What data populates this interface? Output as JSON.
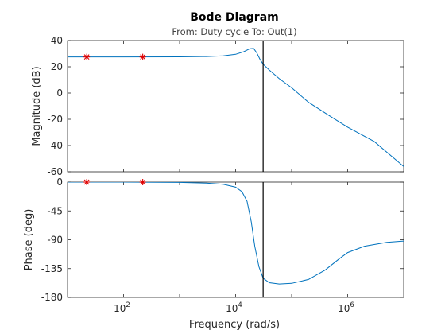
{
  "chart_data": {
    "type": "line",
    "title": "Bode Diagram",
    "subtitle": "From: Duty cycle  To: Out(1)",
    "xlabel": "Frequency  (rad/s)",
    "xscale": "log",
    "xlim": [
      10,
      10000000
    ],
    "x_ticks": [
      {
        "base": "10",
        "exp": "2",
        "value": 100
      },
      {
        "base": "10",
        "exp": "4",
        "value": 10000
      },
      {
        "base": "10",
        "exp": "6",
        "value": 1000000
      }
    ],
    "vertical_line_x": 31000,
    "series_color": "#0072bd",
    "marker_color": "#e00000",
    "panels": [
      {
        "id": "magnitude",
        "ylabel": "Magnitude (dB)",
        "ylim": [
          -60,
          40
        ],
        "y_ticks": [
          "40",
          "20",
          "0",
          "-20",
          "-40",
          "-60"
        ],
        "y_tick_values": [
          40,
          20,
          0,
          -20,
          -40,
          -60
        ],
        "curve": {
          "x": [
            10,
            100,
            1000,
            3000,
            6000,
            10000,
            14000,
            18000,
            21000,
            24000,
            27000,
            31000,
            40000,
            60000,
            100000,
            200000,
            500000,
            1000000,
            3000000,
            10000000
          ],
          "y": [
            27.5,
            27.5,
            27.6,
            27.8,
            28.3,
            29.5,
            31.5,
            33.8,
            34.0,
            30.5,
            26.0,
            22.0,
            17.5,
            11.0,
            4.0,
            -7.0,
            -18.0,
            -26.0,
            -37.0,
            -56.0
          ]
        },
        "markers": {
          "x": [
            22,
            220
          ],
          "y": [
            27.5,
            27.5
          ]
        }
      },
      {
        "id": "phase",
        "ylabel": "Phase (deg)",
        "ylim": [
          -180,
          0
        ],
        "y_ticks": [
          "0",
          "-45",
          "-90",
          "-135",
          "-180"
        ],
        "y_tick_values": [
          0,
          -45,
          -90,
          -135,
          -180
        ],
        "curve": {
          "x": [
            10,
            100,
            1000,
            3000,
            6000,
            10000,
            13000,
            16000,
            19000,
            22000,
            26000,
            31000,
            40000,
            60000,
            100000,
            200000,
            400000,
            700000,
            1000000,
            2000000,
            5000000,
            10000000
          ],
          "y": [
            0,
            0,
            -0.5,
            -1.5,
            -3.5,
            -8,
            -15,
            -30,
            -62,
            -100,
            -132,
            -150,
            -157,
            -159,
            -158,
            -152,
            -137,
            -120,
            -110,
            -100,
            -94,
            -92
          ]
        },
        "markers": {
          "x": [
            22,
            220
          ],
          "y": [
            0,
            0
          ]
        }
      }
    ]
  }
}
